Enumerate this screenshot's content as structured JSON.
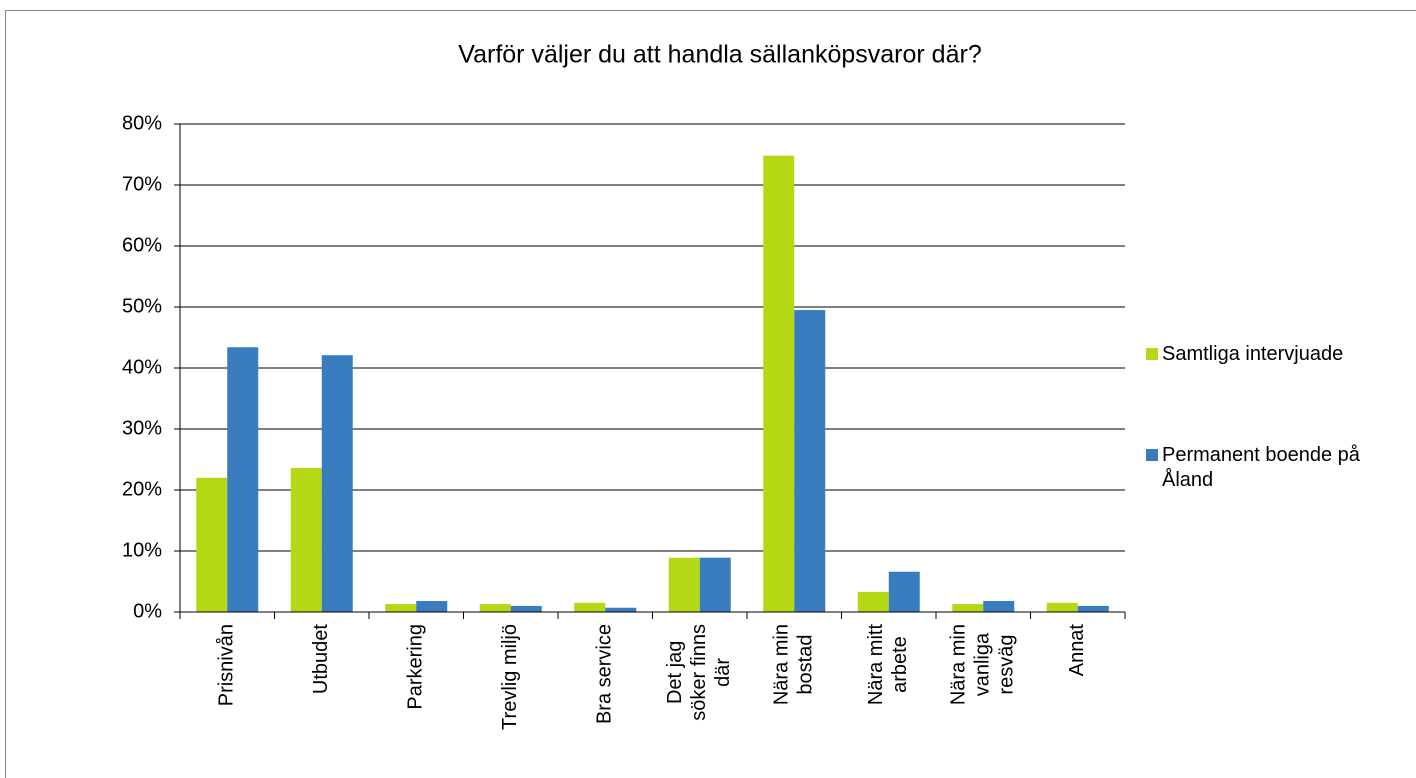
{
  "chart_data": {
    "type": "bar",
    "title": "Varför väljer du att handla sällanköpsvaror där?",
    "categories": [
      [
        "Prisnivån"
      ],
      [
        "Utbudet"
      ],
      [
        "Parkering"
      ],
      [
        "Trevlig miljö"
      ],
      [
        "Bra service"
      ],
      [
        "Det jag",
        "söker finns",
        "där"
      ],
      [
        "Nära min",
        "bostad"
      ],
      [
        "Nära mitt",
        "arbete"
      ],
      [
        "Nära min",
        "vanliga",
        "resväg"
      ],
      [
        "Annat"
      ]
    ],
    "series": [
      {
        "name": "Samtliga intervjuade",
        "color": "#b5d815",
        "values": [
          22.0,
          23.6,
          1.3,
          1.3,
          1.5,
          8.9,
          74.8,
          3.3,
          1.3,
          1.5
        ]
      },
      {
        "name": "Permanent boende på Åland",
        "color": "#3a7dbf",
        "values": [
          43.4,
          42.1,
          1.8,
          1.0,
          0.7,
          8.9,
          49.5,
          6.6,
          1.8,
          1.0
        ]
      }
    ],
    "ylim": [
      0,
      80
    ],
    "yticks": [
      {
        "value": 0,
        "label": "0%"
      },
      {
        "value": 10,
        "label": "10%"
      },
      {
        "value": 20,
        "label": "20%"
      },
      {
        "value": 30,
        "label": "30%"
      },
      {
        "value": 40,
        "label": "40%"
      },
      {
        "value": 50,
        "label": "50%"
      },
      {
        "value": 60,
        "label": "60%"
      },
      {
        "value": 70,
        "label": "70%"
      },
      {
        "value": 80,
        "label": "80%"
      }
    ],
    "grid": true,
    "legend": "right"
  }
}
